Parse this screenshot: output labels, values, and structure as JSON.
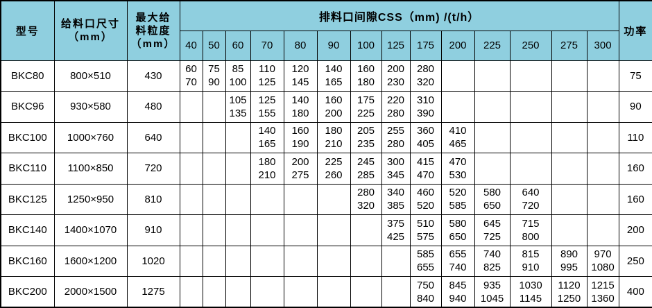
{
  "colors": {
    "header_bg": "#8FCFDF",
    "border": "#000000",
    "cell_bg": "#FFFFFF",
    "text": "#000000"
  },
  "chart_data": {
    "type": "table",
    "title": "排料口间隙CSS（mm) /(t/h）",
    "header": {
      "model": "型号",
      "feed_opening": "给料口尺寸\n（mm）",
      "max_feed_size": "最大给\n料粒度\n（mm）",
      "css_title": "排料口间隙CSS（mm) /(t/h）",
      "power": "功率",
      "gap_columns": [
        "40",
        "50",
        "60",
        "70",
        "80",
        "90",
        "100",
        "125",
        "175",
        "200",
        "225",
        "250",
        "275",
        "300"
      ]
    },
    "rows": [
      {
        "model": "BKC80",
        "feed_opening": "800×510",
        "max_feed_size": "430",
        "capacities": [
          [
            "60",
            "70"
          ],
          [
            "75",
            "90"
          ],
          [
            "85",
            "100"
          ],
          [
            "110",
            "125"
          ],
          [
            "120",
            "145"
          ],
          [
            "140",
            "165"
          ],
          [
            "160",
            "180"
          ],
          [
            "200",
            "230"
          ],
          [
            "280",
            "320"
          ],
          null,
          null,
          null,
          null,
          null
        ],
        "power": "75"
      },
      {
        "model": "BKC96",
        "feed_opening": "930×580",
        "max_feed_size": "480",
        "capacities": [
          null,
          null,
          [
            "105",
            "135"
          ],
          [
            "125",
            "155"
          ],
          [
            "140",
            "180"
          ],
          [
            "160",
            "200"
          ],
          [
            "175",
            "225"
          ],
          [
            "220",
            "280"
          ],
          [
            "310",
            "390"
          ],
          null,
          null,
          null,
          null,
          null
        ],
        "power": "90"
      },
      {
        "model": "BKC100",
        "feed_opening": "1000×760",
        "max_feed_size": "640",
        "capacities": [
          null,
          null,
          null,
          [
            "140",
            "165"
          ],
          [
            "160",
            "190"
          ],
          [
            "180",
            "210"
          ],
          [
            "205",
            "235"
          ],
          [
            "255",
            "280"
          ],
          [
            "360",
            "405"
          ],
          [
            "410",
            "465"
          ],
          null,
          null,
          null,
          null
        ],
        "power": "110"
      },
      {
        "model": "BKC110",
        "feed_opening": "1100×850",
        "max_feed_size": "720",
        "capacities": [
          null,
          null,
          null,
          [
            "180",
            "210"
          ],
          [
            "200",
            "275"
          ],
          [
            "225",
            "260"
          ],
          [
            "245",
            "285"
          ],
          [
            "300",
            "345"
          ],
          [
            "415",
            "470"
          ],
          [
            "470",
            "530"
          ],
          null,
          null,
          null,
          null
        ],
        "power": "160"
      },
      {
        "model": "BKC125",
        "feed_opening": "1250×950",
        "max_feed_size": "810",
        "capacities": [
          null,
          null,
          null,
          null,
          null,
          null,
          [
            "280",
            "320"
          ],
          [
            "340",
            "385"
          ],
          [
            "460",
            "520"
          ],
          [
            "520",
            "585"
          ],
          [
            "580",
            "650"
          ],
          [
            "640",
            "720"
          ],
          null,
          null
        ],
        "power": "160"
      },
      {
        "model": "BKC140",
        "feed_opening": "1400×1070",
        "max_feed_size": "910",
        "capacities": [
          null,
          null,
          null,
          null,
          null,
          null,
          null,
          [
            "375",
            "425"
          ],
          [
            "510",
            "575"
          ],
          [
            "580",
            "650"
          ],
          [
            "645",
            "725"
          ],
          [
            "715",
            "800"
          ],
          null,
          null
        ],
        "power": "200"
      },
      {
        "model": "BKC160",
        "feed_opening": "1600×1200",
        "max_feed_size": "1020",
        "capacities": [
          null,
          null,
          null,
          null,
          null,
          null,
          null,
          null,
          [
            "585",
            "655"
          ],
          [
            "655",
            "740"
          ],
          [
            "740",
            "825"
          ],
          [
            "815",
            "910"
          ],
          [
            "890",
            "995"
          ],
          [
            "970",
            "1080"
          ]
        ],
        "power": "250"
      },
      {
        "model": "BKC200",
        "feed_opening": "2000×1500",
        "max_feed_size": "1275",
        "capacities": [
          null,
          null,
          null,
          null,
          null,
          null,
          null,
          null,
          [
            "750",
            "840"
          ],
          [
            "845",
            "940"
          ],
          [
            "935",
            "1045"
          ],
          [
            "1030",
            "1145"
          ],
          [
            "1120",
            "1250"
          ],
          [
            "1215",
            "1360"
          ]
        ],
        "power": "400"
      }
    ]
  }
}
